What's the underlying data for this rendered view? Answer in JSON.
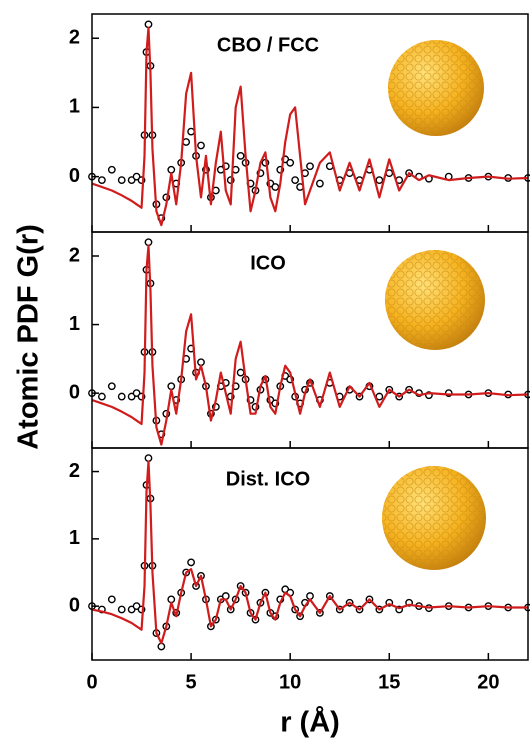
{
  "chart_data": [
    {
      "type": "line",
      "label": "CBO / FCC",
      "ylabel": "Atomic PDF G(r)",
      "xlim": [
        0,
        22
      ],
      "xticks": [
        0,
        5,
        10,
        15,
        20
      ],
      "ylim": [
        -0.8,
        2.35
      ],
      "yticks": [
        0,
        1,
        2
      ],
      "x": [
        0,
        0.5,
        1,
        1.5,
        2,
        2.25,
        2.5,
        2.65,
        2.75,
        2.85,
        2.95,
        3.05,
        3.25,
        3.5,
        3.75,
        4,
        4.25,
        4.5,
        4.75,
        5,
        5.25,
        5.5,
        5.75,
        6,
        6.25,
        6.5,
        6.75,
        7,
        7.25,
        7.5,
        7.75,
        8,
        8.25,
        8.5,
        8.75,
        9,
        9.25,
        9.5,
        9.75,
        10,
        10.25,
        10.5,
        10.75,
        11,
        11.5,
        12,
        12.5,
        13,
        13.5,
        14,
        14.5,
        15,
        15.5,
        16,
        16.5,
        17,
        18,
        19,
        20,
        21,
        22
      ],
      "series": [
        {
          "color": "#000000",
          "marker": "circle",
          "values": [
            0,
            -0.05,
            0.1,
            -0.05,
            -0.05,
            0,
            -0.05,
            0.6,
            1.8,
            2.2,
            1.6,
            0.6,
            -0.4,
            -0.6,
            -0.3,
            0.1,
            -0.1,
            0.2,
            0.5,
            0.65,
            0.3,
            0.45,
            0.1,
            -0.3,
            -0.2,
            0.1,
            0.15,
            -0.05,
            0.1,
            0.3,
            0.2,
            -0.1,
            -0.2,
            0.05,
            0.2,
            -0.1,
            -0.15,
            0.1,
            0.25,
            0.2,
            -0.05,
            -0.15,
            0.05,
            0.15,
            -0.1,
            0.15,
            -0.05,
            0.05,
            -0.05,
            0.1,
            -0.05,
            0.05,
            -0.05,
            0.05,
            0,
            -0.03,
            0,
            -0.02,
            0,
            -0.02,
            -0.02
          ]
        },
        {
          "color": "#d01c1c",
          "marker": "line",
          "values": [
            -0.1,
            -0.15,
            -0.2,
            -0.27,
            -0.35,
            -0.4,
            -0.45,
            0.3,
            1.8,
            2.15,
            1.5,
            0.4,
            -0.5,
            -0.7,
            -0.4,
            0.05,
            -0.4,
            0.2,
            1.2,
            1.5,
            0.3,
            -0.3,
            0.3,
            -0.4,
            0.2,
            0.65,
            -0.2,
            -0.4,
            1.0,
            1.3,
            0.3,
            -0.5,
            -0.2,
            0.2,
            0.35,
            -0.3,
            -0.5,
            -0.1,
            0.5,
            0.9,
            1.0,
            0.3,
            -0.4,
            -0.2,
            0.2,
            0.35,
            -0.2,
            0.2,
            -0.2,
            0.25,
            -0.3,
            0.25,
            -0.2,
            0.05,
            -0.05,
            0.02,
            -0.05,
            -0.02,
            0,
            -0.03,
            -0.02
          ]
        }
      ]
    },
    {
      "type": "line",
      "label": "ICO",
      "xlim": [
        0,
        22
      ],
      "xticks": [
        0,
        5,
        10,
        15,
        20
      ],
      "ylim": [
        -0.8,
        2.35
      ],
      "yticks": [
        0,
        1,
        2
      ],
      "x": [
        0,
        0.5,
        1,
        1.5,
        2,
        2.25,
        2.5,
        2.65,
        2.75,
        2.85,
        2.95,
        3.05,
        3.25,
        3.5,
        3.75,
        4,
        4.25,
        4.5,
        4.75,
        5,
        5.25,
        5.5,
        5.75,
        6,
        6.25,
        6.5,
        6.75,
        7,
        7.25,
        7.5,
        7.75,
        8,
        8.25,
        8.5,
        8.75,
        9,
        9.25,
        9.5,
        9.75,
        10,
        10.25,
        10.5,
        10.75,
        11,
        11.5,
        12,
        12.5,
        13,
        13.5,
        14,
        14.5,
        15,
        15.5,
        16,
        16.5,
        17,
        18,
        19,
        20,
        21,
        22
      ],
      "series": [
        {
          "color": "#000000",
          "marker": "circle",
          "values": [
            0,
            -0.05,
            0.1,
            -0.05,
            -0.05,
            0,
            -0.05,
            0.6,
            1.8,
            2.2,
            1.6,
            0.6,
            -0.4,
            -0.6,
            -0.3,
            0.1,
            -0.1,
            0.2,
            0.5,
            0.65,
            0.3,
            0.45,
            0.1,
            -0.3,
            -0.2,
            0.1,
            0.15,
            -0.05,
            0.1,
            0.3,
            0.2,
            -0.1,
            -0.2,
            0.05,
            0.2,
            -0.1,
            -0.15,
            0.1,
            0.25,
            0.2,
            -0.05,
            -0.15,
            0.05,
            0.15,
            -0.1,
            0.15,
            -0.05,
            0.05,
            -0.05,
            0.1,
            -0.05,
            0.05,
            -0.05,
            0.05,
            0,
            -0.03,
            0,
            -0.02,
            0,
            -0.02,
            -0.02
          ]
        },
        {
          "color": "#d01c1c",
          "marker": "line",
          "values": [
            -0.1,
            -0.15,
            -0.2,
            -0.27,
            -0.35,
            -0.4,
            -0.45,
            0.3,
            1.8,
            2.15,
            1.5,
            0.4,
            -0.5,
            -0.75,
            -0.4,
            0.05,
            -0.3,
            0.2,
            0.9,
            1.15,
            0.2,
            0.4,
            0.1,
            -0.4,
            -0.1,
            0.3,
            0,
            -0.3,
            0.5,
            0.75,
            0.2,
            -0.3,
            -0.3,
            0.1,
            0.25,
            -0.2,
            -0.3,
            0.1,
            0.4,
            0.3,
            0,
            -0.3,
            0,
            0.2,
            -0.2,
            0.3,
            -0.2,
            0.1,
            -0.05,
            0.15,
            -0.2,
            0.05,
            -0.05,
            0.05,
            -0.03,
            0,
            -0.02,
            -0.02,
            0,
            -0.03,
            -0.02
          ]
        }
      ]
    },
    {
      "type": "line",
      "label": "Dist. ICO",
      "xlabel": "r (Å)",
      "xlim": [
        0,
        22
      ],
      "xticks": [
        0,
        5,
        10,
        15,
        20
      ],
      "ylim": [
        -0.8,
        2.35
      ],
      "yticks": [
        0,
        1,
        2
      ],
      "x": [
        0,
        0.5,
        1,
        1.5,
        2,
        2.25,
        2.5,
        2.65,
        2.75,
        2.85,
        2.95,
        3.05,
        3.25,
        3.5,
        3.75,
        4,
        4.25,
        4.5,
        4.75,
        5,
        5.25,
        5.5,
        5.75,
        6,
        6.25,
        6.5,
        6.75,
        7,
        7.25,
        7.5,
        7.75,
        8,
        8.25,
        8.5,
        8.75,
        9,
        9.25,
        9.5,
        9.75,
        10,
        10.25,
        10.5,
        10.75,
        11,
        11.5,
        12,
        12.5,
        13,
        13.5,
        14,
        14.5,
        15,
        15.5,
        16,
        16.5,
        17,
        18,
        19,
        20,
        21,
        22
      ],
      "series": [
        {
          "color": "#000000",
          "marker": "circle",
          "values": [
            0,
            -0.05,
            0.1,
            -0.05,
            -0.05,
            0,
            -0.05,
            0.6,
            1.8,
            2.2,
            1.6,
            0.6,
            -0.4,
            -0.6,
            -0.3,
            0.1,
            -0.1,
            0.2,
            0.5,
            0.65,
            0.3,
            0.45,
            0.1,
            -0.3,
            -0.2,
            0.1,
            0.15,
            -0.05,
            0.1,
            0.3,
            0.2,
            -0.1,
            -0.2,
            0.05,
            0.2,
            -0.1,
            -0.15,
            0.1,
            0.25,
            0.2,
            -0.05,
            -0.15,
            0.05,
            0.15,
            -0.1,
            0.15,
            -0.05,
            0.05,
            -0.05,
            0.1,
            -0.05,
            0.05,
            -0.05,
            0.05,
            0,
            -0.03,
            0,
            -0.02,
            0,
            -0.02,
            -0.02
          ]
        },
        {
          "color": "#d01c1c",
          "marker": "line",
          "values": [
            -0.05,
            -0.08,
            -0.12,
            -0.18,
            -0.25,
            -0.3,
            -0.35,
            0.3,
            1.7,
            2.15,
            1.5,
            0.5,
            -0.4,
            -0.55,
            -0.3,
            0.05,
            -0.15,
            0.2,
            0.5,
            0.55,
            0.3,
            0.45,
            0.1,
            -0.3,
            -0.2,
            0.1,
            0.1,
            -0.05,
            0.1,
            0.3,
            0.2,
            -0.1,
            -0.2,
            0.05,
            0.2,
            -0.1,
            -0.2,
            0.05,
            0.2,
            0.15,
            -0.05,
            -0.15,
            0,
            0.1,
            -0.1,
            0.15,
            -0.05,
            0.05,
            -0.05,
            0.1,
            -0.05,
            0.03,
            -0.03,
            0.02,
            0,
            -0.02,
            0,
            -0.02,
            0,
            -0.02,
            -0.02
          ]
        }
      ]
    }
  ]
}
